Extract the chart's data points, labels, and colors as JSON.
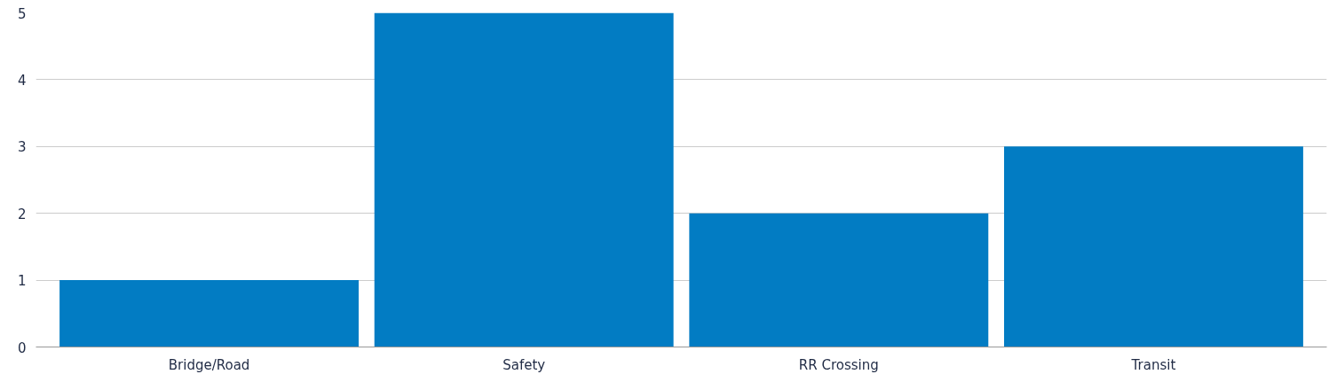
{
  "chart_data": {
    "type": "bar",
    "categories": [
      "Bridge/Road",
      "Safety",
      "RR Crossing",
      "Transit"
    ],
    "values": [
      1,
      5,
      2,
      3
    ],
    "color": "#027cc3",
    "ylim": [
      0,
      5
    ],
    "yticks": [
      0,
      1,
      2,
      3,
      4,
      5
    ],
    "grid": "y"
  }
}
